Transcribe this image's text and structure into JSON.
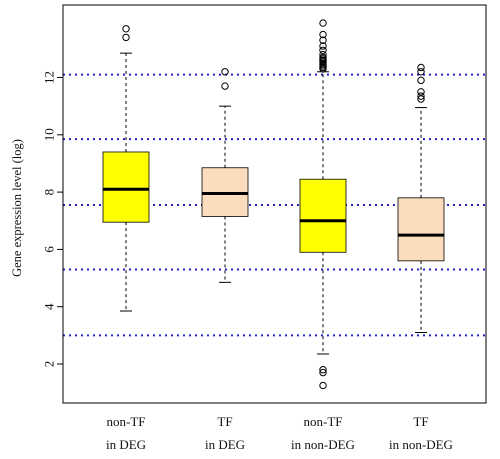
{
  "chart_data": {
    "type": "box",
    "title": "",
    "xlabel": "",
    "ylabel": "Gene expression level (log)",
    "ylim": [
      0.8,
      14.5
    ],
    "yticks": [
      2,
      4,
      6,
      8,
      10,
      12
    ],
    "reference_lines": [
      3.0,
      5.3,
      7.55,
      9.85,
      12.1
    ],
    "reference_line_color": "#2222cc",
    "grid": false,
    "legend": "none",
    "categories": [
      {
        "line1": "non-TF",
        "line2": "in DEG"
      },
      {
        "line1": "TF",
        "line2": "in DEG"
      },
      {
        "line1": "non-TF",
        "line2": "in non-DEG"
      },
      {
        "line1": "TF",
        "line2": "in non-DEG"
      }
    ],
    "boxes": [
      {
        "fill": "#ffff00",
        "whisker_low": 3.85,
        "q1": 6.95,
        "median": 8.1,
        "q3": 9.4,
        "whisker_high": 12.85,
        "outliers": [
          13.4,
          13.7
        ]
      },
      {
        "fill": "#fbdcbc",
        "whisker_low": 4.85,
        "q1": 7.15,
        "median": 7.95,
        "q3": 8.85,
        "whisker_high": 11.0,
        "outliers": [
          11.7,
          12.2
        ]
      },
      {
        "fill": "#ffff00",
        "whisker_low": 2.35,
        "q1": 5.9,
        "median": 7.0,
        "q3": 8.45,
        "whisker_high": 12.2,
        "outliers": [
          1.25,
          1.7,
          1.8,
          12.3,
          12.35,
          12.4,
          12.45,
          12.5,
          12.55,
          12.6,
          12.65,
          12.7,
          12.8,
          12.95,
          13.1,
          13.3,
          13.5,
          13.9
        ]
      },
      {
        "fill": "#fbdcbc",
        "whisker_low": 3.1,
        "q1": 5.6,
        "median": 6.5,
        "q3": 7.8,
        "whisker_high": 10.95,
        "outliers": [
          11.25,
          11.35,
          11.5,
          11.9,
          12.2,
          12.35
        ]
      }
    ]
  }
}
